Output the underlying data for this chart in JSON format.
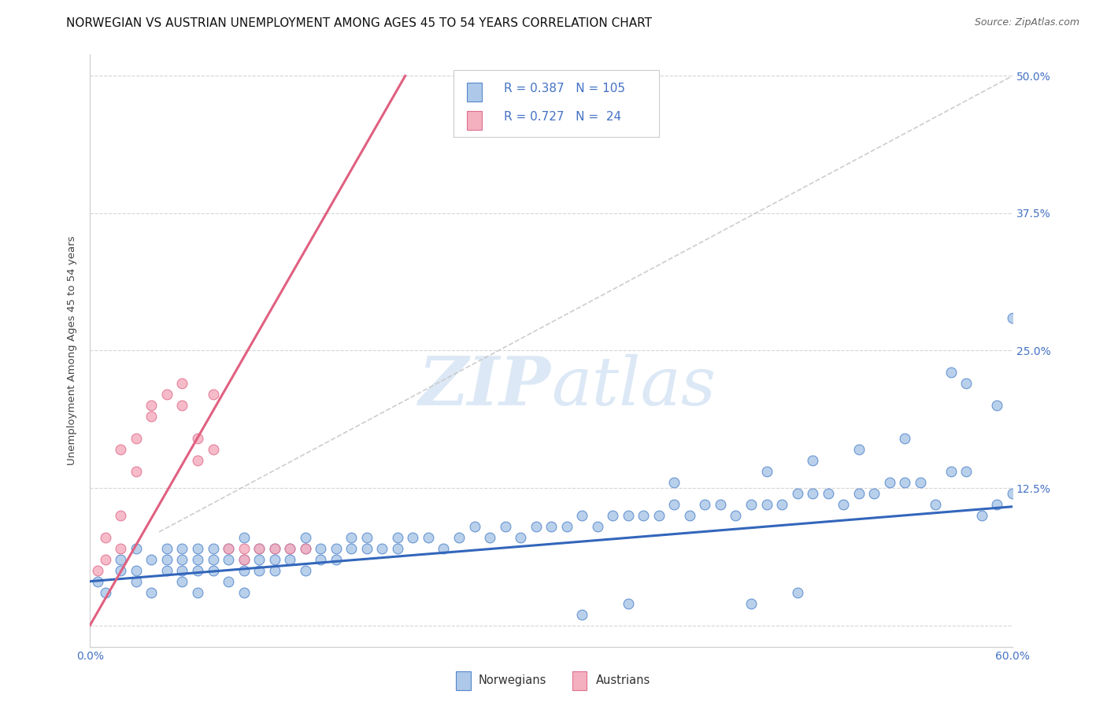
{
  "title": "NORWEGIAN VS AUSTRIAN UNEMPLOYMENT AMONG AGES 45 TO 54 YEARS CORRELATION CHART",
  "source": "Source: ZipAtlas.com",
  "ylabel": "Unemployment Among Ages 45 to 54 years",
  "xlim": [
    0.0,
    0.6
  ],
  "ylim": [
    -0.02,
    0.52
  ],
  "yticks": [
    0.0,
    0.125,
    0.25,
    0.375,
    0.5
  ],
  "yticklabels": [
    "",
    "12.5%",
    "25.0%",
    "37.5%",
    "50.0%"
  ],
  "xticks": [
    0.0,
    0.1,
    0.2,
    0.3,
    0.4,
    0.5,
    0.6
  ],
  "xticklabels": [
    "0.0%",
    "",
    "",
    "",
    "",
    "",
    "60.0%"
  ],
  "norwegians_R": "0.387",
  "norwegians_N": "105",
  "austrians_R": "0.727",
  "austrians_N": "24",
  "norwegian_fill": "#adc8e8",
  "norwegian_edge": "#5588cc",
  "austrian_fill": "#f5b0c0",
  "austrian_edge": "#e07090",
  "norwegian_line_color": "#3366bb",
  "austrian_line_color": "#e06080",
  "dashed_color": "#c8c8c8",
  "grid_color": "#cccccc",
  "background_color": "#ffffff",
  "watermark_color": "#dce8f5",
  "legend_box_edge": "#cccccc",
  "tick_color": "#4472c4",
  "title_fontsize": 11,
  "label_fontsize": 9.5,
  "tick_fontsize": 10,
  "source_fontsize": 9,
  "legend_fontsize": 11,
  "norwegians_x": [
    0.005,
    0.01,
    0.02,
    0.02,
    0.03,
    0.03,
    0.03,
    0.04,
    0.04,
    0.05,
    0.05,
    0.05,
    0.06,
    0.06,
    0.06,
    0.06,
    0.07,
    0.07,
    0.07,
    0.07,
    0.08,
    0.08,
    0.08,
    0.09,
    0.09,
    0.09,
    0.1,
    0.1,
    0.1,
    0.1,
    0.11,
    0.11,
    0.11,
    0.12,
    0.12,
    0.12,
    0.13,
    0.13,
    0.14,
    0.14,
    0.14,
    0.15,
    0.15,
    0.16,
    0.16,
    0.17,
    0.17,
    0.18,
    0.18,
    0.19,
    0.2,
    0.2,
    0.21,
    0.22,
    0.23,
    0.24,
    0.25,
    0.26,
    0.27,
    0.28,
    0.29,
    0.3,
    0.31,
    0.32,
    0.33,
    0.34,
    0.35,
    0.36,
    0.37,
    0.38,
    0.39,
    0.4,
    0.41,
    0.42,
    0.43,
    0.44,
    0.45,
    0.46,
    0.47,
    0.48,
    0.49,
    0.5,
    0.51,
    0.52,
    0.53,
    0.54,
    0.55,
    0.56,
    0.57,
    0.58,
    0.59,
    0.59,
    0.6,
    0.6,
    0.57,
    0.44,
    0.47,
    0.5,
    0.53,
    0.56,
    0.43,
    0.46,
    0.38,
    0.35,
    0.32
  ],
  "norwegians_y": [
    0.04,
    0.03,
    0.05,
    0.06,
    0.04,
    0.05,
    0.07,
    0.03,
    0.06,
    0.05,
    0.06,
    0.07,
    0.04,
    0.05,
    0.06,
    0.07,
    0.03,
    0.05,
    0.06,
    0.07,
    0.05,
    0.06,
    0.07,
    0.04,
    0.06,
    0.07,
    0.03,
    0.05,
    0.06,
    0.08,
    0.05,
    0.06,
    0.07,
    0.05,
    0.06,
    0.07,
    0.06,
    0.07,
    0.05,
    0.07,
    0.08,
    0.06,
    0.07,
    0.06,
    0.07,
    0.07,
    0.08,
    0.07,
    0.08,
    0.07,
    0.07,
    0.08,
    0.08,
    0.08,
    0.07,
    0.08,
    0.09,
    0.08,
    0.09,
    0.08,
    0.09,
    0.09,
    0.09,
    0.1,
    0.09,
    0.1,
    0.1,
    0.1,
    0.1,
    0.11,
    0.1,
    0.11,
    0.11,
    0.1,
    0.11,
    0.11,
    0.11,
    0.12,
    0.12,
    0.12,
    0.11,
    0.12,
    0.12,
    0.13,
    0.13,
    0.13,
    0.11,
    0.14,
    0.14,
    0.1,
    0.11,
    0.2,
    0.28,
    0.12,
    0.22,
    0.14,
    0.15,
    0.16,
    0.17,
    0.23,
    0.02,
    0.03,
    0.13,
    0.02,
    0.01
  ],
  "austrians_x": [
    0.005,
    0.01,
    0.01,
    0.02,
    0.02,
    0.02,
    0.03,
    0.03,
    0.04,
    0.04,
    0.05,
    0.06,
    0.06,
    0.07,
    0.07,
    0.08,
    0.08,
    0.09,
    0.1,
    0.1,
    0.11,
    0.12,
    0.13,
    0.14
  ],
  "austrians_y": [
    0.05,
    0.06,
    0.08,
    0.07,
    0.1,
    0.16,
    0.14,
    0.17,
    0.19,
    0.2,
    0.21,
    0.2,
    0.22,
    0.15,
    0.17,
    0.16,
    0.21,
    0.07,
    0.06,
    0.07,
    0.07,
    0.07,
    0.07,
    0.07
  ],
  "norway_trend_x": [
    0.0,
    0.6
  ],
  "norway_trend_y": [
    0.04,
    0.108
  ],
  "austria_trend_x": [
    0.0,
    0.205
  ],
  "austria_trend_y": [
    0.0,
    0.5
  ],
  "dashed_trend_x": [
    0.045,
    0.6
  ],
  "dashed_trend_y": [
    0.085,
    0.5
  ]
}
